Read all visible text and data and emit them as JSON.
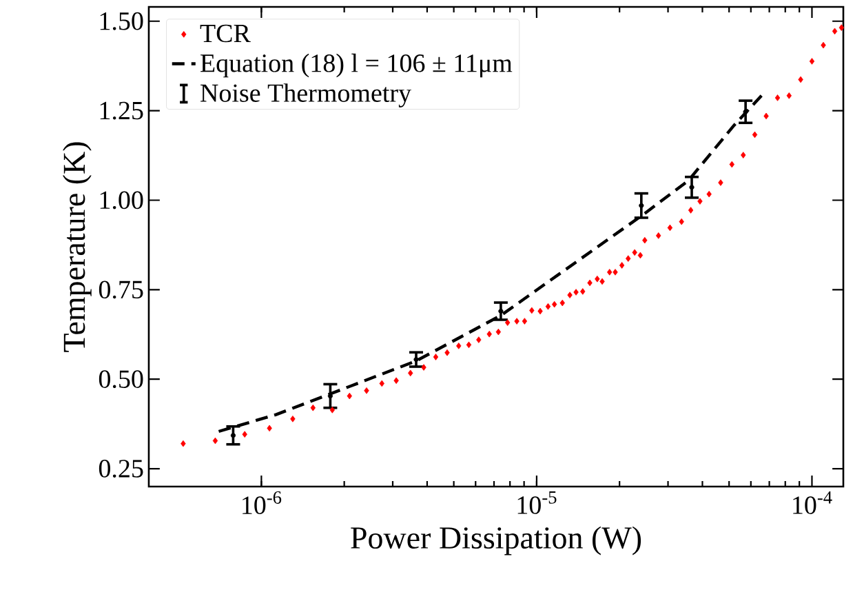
{
  "chart_data": {
    "type": "scatter",
    "xlabel": "Power Dissipation (W)",
    "ylabel": "Temperature (K)",
    "log": "x",
    "grid": false,
    "legend": "top left",
    "xlim": [
      3.9e-07,
      0.00013
    ],
    "ylim": [
      0.2,
      1.54
    ],
    "xticks": [
      {
        "value": 1e-06,
        "label": "10$^{-6}$"
      },
      {
        "value": 1e-05,
        "label": "10$^{-5}$"
      },
      {
        "value": 0.0001,
        "label": "10$^{-4}$"
      }
    ],
    "yticks": [
      {
        "value": 0.25,
        "label": "0.25"
      },
      {
        "value": 0.5,
        "label": "0.50"
      },
      {
        "value": 0.75,
        "label": "0.75"
      },
      {
        "value": 1.0,
        "label": "1.00"
      },
      {
        "value": 1.25,
        "label": "1.25"
      },
      {
        "value": 1.5,
        "label": "1.50"
      }
    ],
    "series": [
      {
        "name": "TCR",
        "marker": "diamond",
        "color": "#ff0000",
        "x": [
          5.2e-07,
          6.8e-07,
          8.7e-07,
          1.07e-06,
          1.3e-06,
          1.54e-06,
          1.81e-06,
          2.09e-06,
          2.41e-06,
          2.74e-06,
          3.09e-06,
          3.48e-06,
          3.89e-06,
          4.3e-06,
          4.73e-06,
          5.21e-06,
          5.67e-06,
          6.16e-06,
          6.73e-06,
          7.26e-06,
          7.84e-06,
          8.47e-06,
          9.04e-06,
          9.6e-06,
          1.03e-05,
          1.1e-05,
          1.16e-05,
          1.24e-05,
          1.32e-05,
          1.39e-05,
          1.47e-05,
          1.56e-05,
          1.66e-05,
          1.73e-05,
          1.84e-05,
          1.93e-05,
          2.04e-05,
          2.15e-05,
          2.27e-05,
          2.38e-05,
          2.47e-05,
          2.77e-05,
          3.05e-05,
          3.36e-05,
          3.63e-05,
          3.92e-05,
          4.23e-05,
          4.66e-05,
          5.12e-05,
          5.63e-05,
          6.2e-05,
          6.82e-05,
          7.5e-05,
          8.26e-05,
          9.1e-05,
          0.0001,
          0.00011,
          0.000121,
          0.000128
        ],
        "values": [
          0.32,
          0.328,
          0.346,
          0.363,
          0.389,
          0.42,
          0.414,
          0.453,
          0.468,
          0.488,
          0.496,
          0.517,
          0.533,
          0.562,
          0.574,
          0.593,
          0.596,
          0.61,
          0.626,
          0.632,
          0.658,
          0.662,
          0.662,
          0.692,
          0.69,
          0.703,
          0.709,
          0.713,
          0.735,
          0.743,
          0.745,
          0.769,
          0.78,
          0.773,
          0.799,
          0.799,
          0.818,
          0.837,
          0.854,
          0.846,
          0.888,
          0.901,
          0.923,
          0.94,
          0.972,
          0.997,
          1.017,
          1.049,
          1.1,
          1.126,
          1.183,
          1.235,
          1.286,
          1.292,
          1.337,
          1.388,
          1.433,
          1.472,
          1.482
        ]
      },
      {
        "name": "Equation (18) l = 106 ± 11μm",
        "type": "line",
        "line_style": "dashed",
        "color": "#000000",
        "x": [
          7e-07,
          1.13e-06,
          1.78e-06,
          3.65e-06,
          7.41e-06,
          1.66e-05,
          2.43e-05,
          3.56e-05,
          5.21e-05,
          6.68e-05
        ],
        "values": [
          0.354,
          0.401,
          0.459,
          0.551,
          0.678,
          0.869,
          0.959,
          1.055,
          1.209,
          1.299
        ]
      },
      {
        "name": "Noise Thermometry",
        "type": "scatter",
        "marker": "circle",
        "color": "#000000",
        "x": [
          7.9e-07,
          1.78e-06,
          3.65e-06,
          7.41e-06,
          2.4e-05,
          3.66e-05,
          5.74e-05
        ],
        "values": [
          0.343,
          0.453,
          0.555,
          0.69,
          0.985,
          1.036,
          1.247
        ],
        "errors": [
          0.025,
          0.033,
          0.02,
          0.024,
          0.034,
          0.029,
          0.031
        ]
      }
    ]
  }
}
